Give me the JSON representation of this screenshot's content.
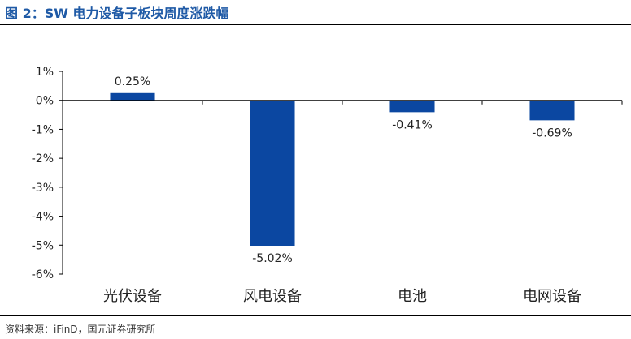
{
  "figure_title": "图 2：SW 电力设备子板块周度涨跌幅",
  "source_note": "资料来源：iFinD，国元证券研究所",
  "colors": {
    "bar": "#0b47a1",
    "title": "#1f5aa6"
  },
  "chart_data": {
    "type": "bar",
    "categories": [
      "光伏设备",
      "风电设备",
      "电池",
      "电网设备"
    ],
    "values": [
      0.25,
      -5.02,
      -0.41,
      -0.69
    ],
    "value_labels": [
      "0.25%",
      "-5.02%",
      "-0.41%",
      "-0.69%"
    ],
    "ylim": [
      -6,
      1
    ],
    "yticks": [
      1,
      0,
      -1,
      -2,
      -3,
      -4,
      -5,
      -6
    ],
    "ytick_labels": [
      "1%",
      "0%",
      "-1%",
      "-2%",
      "-3%",
      "-4%",
      "-5%",
      "-6%"
    ],
    "grid": false,
    "legend": "none"
  }
}
